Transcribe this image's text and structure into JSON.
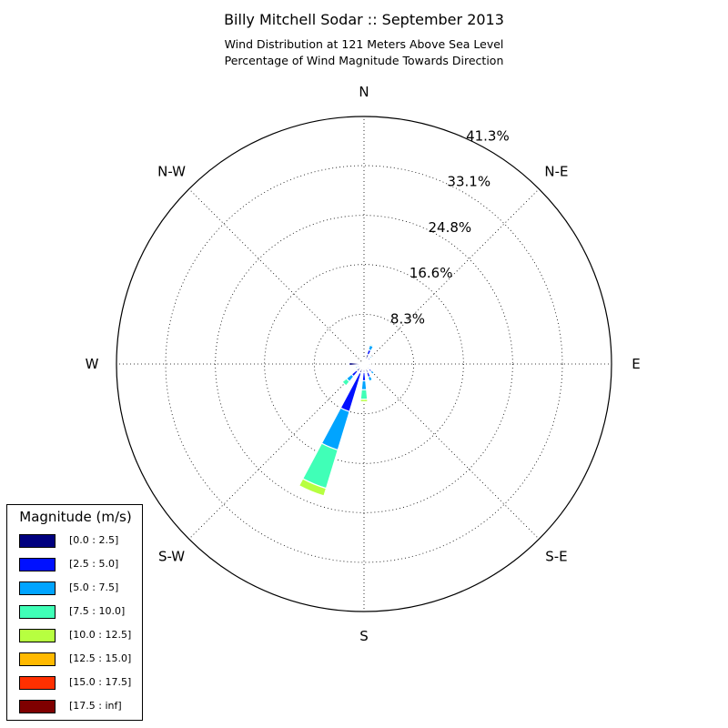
{
  "chart_data": {
    "type": "windrose",
    "title": "Billy Mitchell Sodar :: September 2013",
    "subtitle_lines": [
      "Wind Distribution at 121 Meters Above Sea Level",
      "Percentage of Wind Magnitude Towards Direction"
    ],
    "directions": [
      "N",
      "N-E",
      "E",
      "S-E",
      "S",
      "S-W",
      "W",
      "N-W"
    ],
    "radial_ticks": [
      "8.3%",
      "16.6%",
      "24.8%",
      "33.1%",
      "41.3%"
    ],
    "radial_tick_values": [
      8.3,
      16.6,
      24.8,
      33.1,
      41.3
    ],
    "rmax": 41.3,
    "grid": true,
    "legend_title": "Magnitude (m/s)",
    "legend_placement": "bottom-left",
    "bins": [
      {
        "label": "[0.0 : 2.5]",
        "color": "#00007f"
      },
      {
        "label": "[2.5 : 5.0]",
        "color": "#0010ff"
      },
      {
        "label": "[5.0 : 7.5]",
        "color": "#00a4ff"
      },
      {
        "label": "[7.5 : 10.0]",
        "color": "#40ffb7"
      },
      {
        "label": "[10.0 : 12.5]",
        "color": "#b7ff40"
      },
      {
        "label": "[12.5 : 15.0]",
        "color": "#ffb900"
      },
      {
        "label": "[15.0 : 17.5]",
        "color": "#ff3000"
      },
      {
        "label": "[17.5 : inf]",
        "color": "#7f0000"
      }
    ],
    "sectors": [
      {
        "dir_deg": 0,
        "cumulative": [
          0.0,
          0.4,
          0.6,
          0.8,
          0.9,
          0.9,
          0.9,
          0.9
        ]
      },
      {
        "dir_deg": 22.5,
        "cumulative": [
          0.0,
          1.7,
          2.5,
          3.3,
          3.5,
          3.5,
          3.5,
          3.5
        ]
      },
      {
        "dir_deg": 45,
        "cumulative": [
          0.0,
          1.0,
          1.4,
          1.7,
          1.8,
          1.8,
          1.8,
          1.8
        ]
      },
      {
        "dir_deg": 67.5,
        "cumulative": [
          0.0,
          0.3,
          0.4,
          0.5,
          0.5,
          0.5,
          0.5,
          0.5
        ]
      },
      {
        "dir_deg": 90,
        "cumulative": [
          0.0,
          0.8,
          1.1,
          1.2,
          1.2,
          1.2,
          1.2,
          1.2
        ]
      },
      {
        "dir_deg": 112.5,
        "cumulative": [
          0.0,
          0.6,
          1.0,
          1.2,
          1.3,
          1.3,
          1.3,
          1.3
        ]
      },
      {
        "dir_deg": 135,
        "cumulative": [
          0.0,
          1.2,
          1.7,
          2.2,
          2.3,
          2.3,
          2.3,
          2.3
        ]
      },
      {
        "dir_deg": 157.5,
        "cumulative": [
          0.0,
          1.5,
          2.3,
          3.0,
          3.2,
          3.2,
          3.2,
          3.2
        ]
      },
      {
        "dir_deg": 180,
        "cumulative": [
          0.0,
          1.4,
          2.8,
          4.3,
          5.9,
          6.3,
          6.3,
          6.3
        ]
      },
      {
        "dir_deg": 202.5,
        "cumulative": [
          0.0,
          1.6,
          8.3,
          15.0,
          21.7,
          23.0,
          23.0,
          23.0
        ]
      },
      {
        "dir_deg": 225,
        "cumulative": [
          0.0,
          1.6,
          2.7,
          3.8,
          4.7,
          4.7,
          4.7,
          4.7
        ]
      },
      {
        "dir_deg": 247.5,
        "cumulative": [
          0.0,
          0.8,
          1.2,
          1.5,
          1.5,
          1.5,
          1.5,
          1.5
        ]
      },
      {
        "dir_deg": 270,
        "cumulative": [
          0.0,
          2.5,
          2.6,
          2.6,
          2.6,
          2.6,
          2.6,
          2.6
        ]
      },
      {
        "dir_deg": 292.5,
        "cumulative": [
          0.0,
          0.3,
          0.4,
          0.4,
          0.4,
          0.4,
          0.4,
          0.4
        ]
      },
      {
        "dir_deg": 315,
        "cumulative": [
          0.0,
          0.3,
          0.3,
          0.3,
          0.3,
          0.3,
          0.3,
          0.3
        ]
      },
      {
        "dir_deg": 337.5,
        "cumulative": [
          0.0,
          0.2,
          0.3,
          0.3,
          0.3,
          0.3,
          0.3,
          0.3
        ]
      }
    ]
  }
}
